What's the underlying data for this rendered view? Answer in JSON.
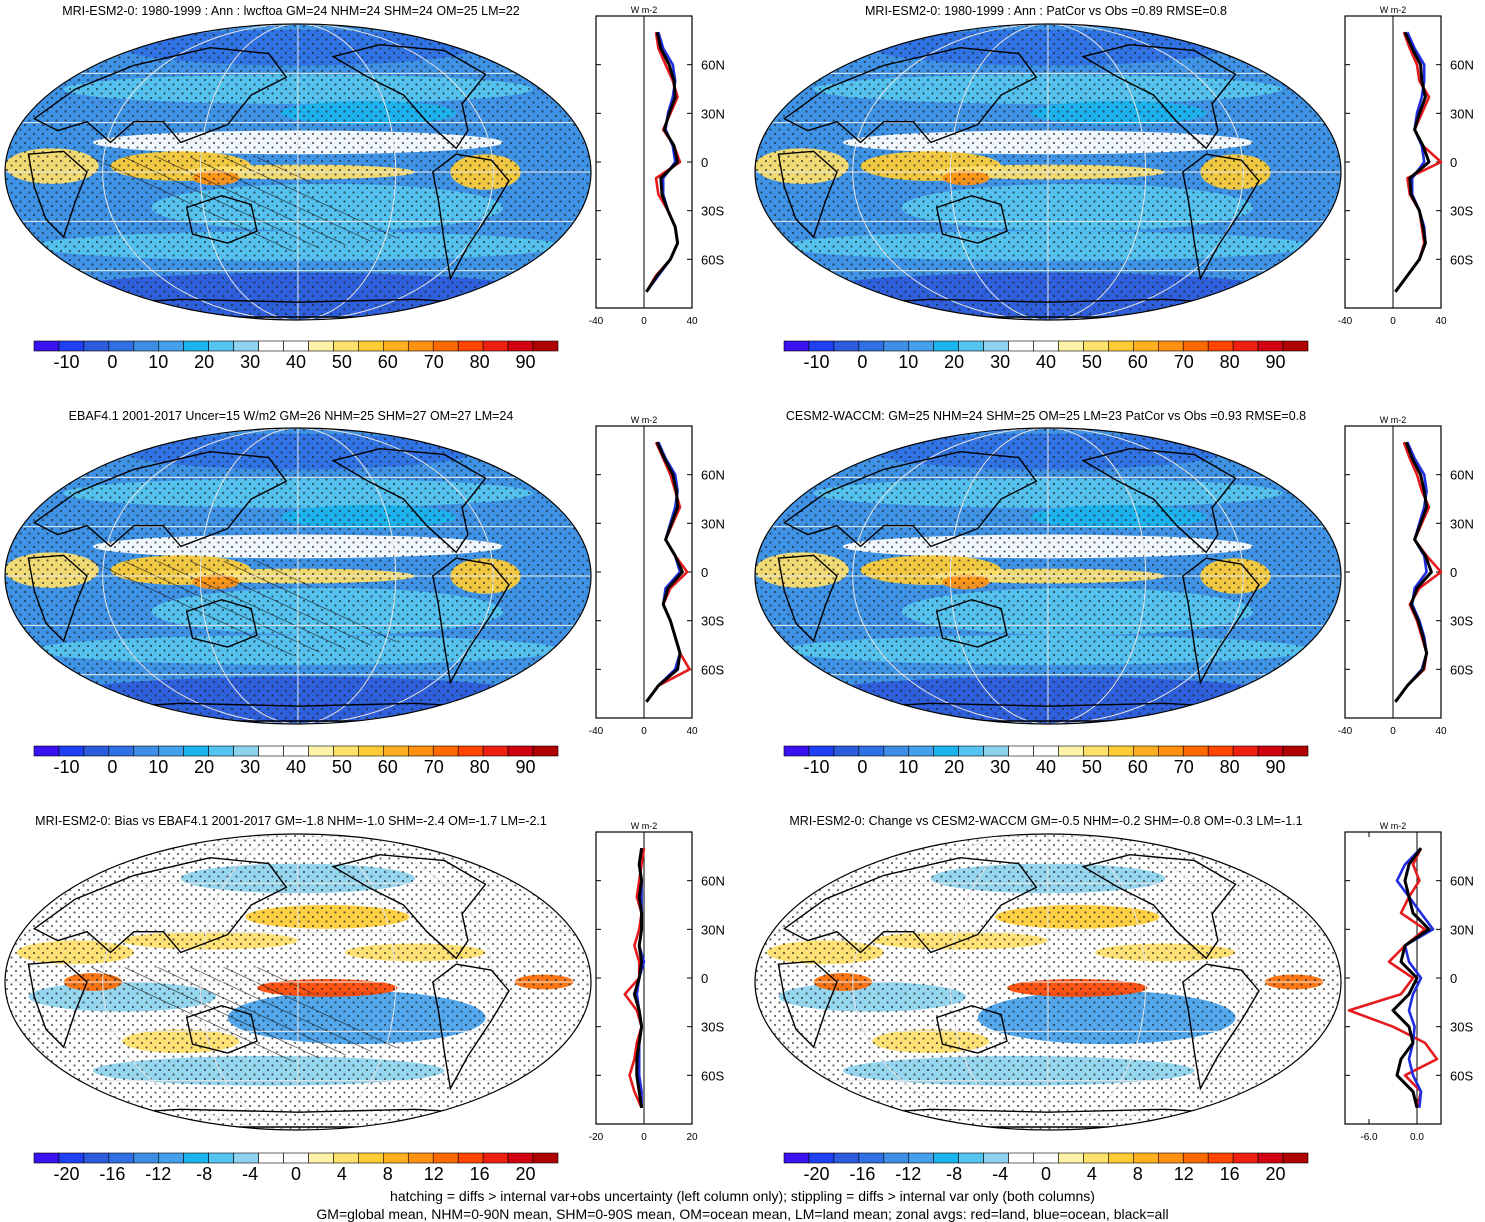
{
  "footer": {
    "line1": "hatching = diffs > internal var+obs uncertainty (left column only); stippling = diffs > internal var only (both columns)",
    "line2": "GM=global mean, NHM=0-90N mean, SHM=0-90S mean, OM=ocean mean, LM=land mean; zonal avgs: red=land, blue=ocean, black=all"
  },
  "colors": {
    "land": "#e41a1c",
    "ocean": "#1f2de0",
    "all": "#000000",
    "mean_scale": [
      "#3a12f0",
      "#1f3ff2",
      "#2c5bdc",
      "#2f70e4",
      "#3e8ee6",
      "#44a0ea",
      "#1ab4ee",
      "#56c4f0",
      "#8dd2ee",
      "#ffffff",
      "#ffffff",
      "#fff3a8",
      "#ffe06a",
      "#ffcc33",
      "#ffb020",
      "#ff9010",
      "#ff6a00",
      "#ff4500",
      "#f02010",
      "#d00010",
      "#b00000"
    ],
    "diff_scale": [
      "#3a12f0",
      "#1f3ff2",
      "#2c5bdc",
      "#2f70e4",
      "#3e8ee6",
      "#44a0ea",
      "#1ab4ee",
      "#56c4f0",
      "#8dd2ee",
      "#ffffff",
      "#ffffff",
      "#fff3a8",
      "#ffe06a",
      "#ffcc33",
      "#ffb020",
      "#ff9010",
      "#ff6a00",
      "#ff4500",
      "#f02010",
      "#d00010",
      "#b00000"
    ]
  },
  "chart_data": [
    {
      "type": "heatmap",
      "title": "MRI-ESM2-0: 1980-1999 : Ann : lwcftoa GM=24 NHM=24 SHM=24 OM=25 LM=22",
      "colorbar_labels": [
        "-10",
        "0",
        "10",
        "20",
        "30",
        "40",
        "50",
        "60",
        "70",
        "80",
        "90"
      ],
      "zonal": {
        "unit": "W m-2",
        "x_ticks": [
          "-40",
          "0",
          "40"
        ],
        "xlim": [
          -40,
          40
        ],
        "y_ticks": [
          "60N",
          "30N",
          "0",
          "30S",
          "60S"
        ],
        "lat": [
          80,
          70,
          60,
          50,
          40,
          30,
          20,
          10,
          0,
          -10,
          -20,
          -30,
          -40,
          -50,
          -60,
          -70,
          -80
        ],
        "series": [
          {
            "name": "land",
            "values": [
              10,
              12,
              18,
              24,
              28,
              22,
              16,
              25,
              30,
              10,
              12,
              20,
              26,
              28,
              22,
              10,
              2
            ]
          },
          {
            "name": "ocean",
            "values": [
              12,
              16,
              24,
              26,
              24,
              20,
              18,
              24,
              26,
              16,
              16,
              20,
              26,
              28,
              22,
              12,
              2
            ]
          },
          {
            "name": "all",
            "values": [
              11,
              14,
              21,
              25,
              26,
              21,
              17,
              25,
              28,
              14,
              15,
              20,
              26,
              28,
              22,
              11,
              2
            ]
          }
        ]
      }
    },
    {
      "type": "heatmap",
      "title": "MRI-ESM2-0: 1980-1999 : Ann : PatCor vs Obs =0.89 RMSE=0.8",
      "colorbar_labels": [
        "-10",
        "0",
        "10",
        "20",
        "30",
        "40",
        "50",
        "60",
        "70",
        "80",
        "90"
      ],
      "zonal": {
        "unit": "W m-2",
        "x_ticks": [
          "-40",
          "0",
          "40"
        ],
        "xlim": [
          -40,
          40
        ],
        "y_ticks": [
          "60N",
          "30N",
          "0",
          "30S",
          "60S"
        ],
        "lat": [
          80,
          70,
          60,
          50,
          40,
          30,
          20,
          10,
          0,
          -10,
          -20,
          -30,
          -40,
          -50,
          -60,
          -70,
          -80
        ],
        "series": [
          {
            "name": "land",
            "values": [
              9,
              14,
              20,
              22,
              30,
              24,
              18,
              25,
              40,
              12,
              14,
              22,
              24,
              26,
              22,
              12,
              2
            ]
          },
          {
            "name": "ocean",
            "values": [
              12,
              18,
              26,
              26,
              24,
              20,
              18,
              24,
              26,
              16,
              16,
              22,
              26,
              27,
              22,
              12,
              2
            ]
          },
          {
            "name": "all",
            "values": [
              10,
              16,
              23,
              24,
              27,
              22,
              18,
              25,
              30,
              14,
              15,
              22,
              25,
              27,
              22,
              12,
              2
            ]
          }
        ]
      }
    },
    {
      "type": "heatmap",
      "title": "EBAF4.1 2001-2017 Uncer=15 W/m2 GM=26 NHM=25 SHM=27 OM=27 LM=24",
      "colorbar_labels": [
        "-10",
        "0",
        "10",
        "20",
        "30",
        "40",
        "50",
        "60",
        "70",
        "80",
        "90"
      ],
      "zonal": {
        "unit": "W m-2",
        "x_ticks": [
          "-40",
          "0",
          "40"
        ],
        "xlim": [
          -40,
          40
        ],
        "y_ticks": [
          "60N",
          "30N",
          "0",
          "30S",
          "60S"
        ],
        "lat": [
          80,
          70,
          60,
          50,
          40,
          30,
          20,
          10,
          0,
          -10,
          -20,
          -30,
          -40,
          -50,
          -60,
          -70,
          -80
        ],
        "series": [
          {
            "name": "land",
            "values": [
              10,
              16,
              22,
              26,
              30,
              24,
              18,
              26,
              36,
              22,
              16,
              22,
              26,
              30,
              38,
              12,
              2
            ]
          },
          {
            "name": "ocean",
            "values": [
              12,
              18,
              26,
              28,
              26,
              22,
              18,
              26,
              30,
              18,
              16,
              22,
              26,
              30,
              26,
              12,
              2
            ]
          },
          {
            "name": "all",
            "values": [
              11,
              17,
              24,
              27,
              28,
              23,
              18,
              26,
              32,
              20,
              16,
              22,
              26,
              30,
              28,
              12,
              2
            ]
          }
        ]
      }
    },
    {
      "type": "heatmap",
      "title": "CESM2-WACCM: GM=25 NHM=24 SHM=25 OM=25 LM=23 PatCor vs Obs =0.93 RMSE=0.8",
      "colorbar_labels": [
        "-10",
        "0",
        "10",
        "20",
        "30",
        "40",
        "50",
        "60",
        "70",
        "80",
        "90"
      ],
      "zonal": {
        "unit": "W m-2",
        "x_ticks": [
          "-40",
          "0",
          "40"
        ],
        "xlim": [
          -40,
          40
        ],
        "y_ticks": [
          "60N",
          "30N",
          "0",
          "30S",
          "60S"
        ],
        "lat": [
          80,
          70,
          60,
          50,
          40,
          30,
          20,
          10,
          0,
          -10,
          -20,
          -30,
          -40,
          -50,
          -60,
          -70,
          -80
        ],
        "series": [
          {
            "name": "land",
            "values": [
              9,
              14,
              20,
              24,
              30,
              24,
              18,
              28,
              40,
              22,
              14,
              20,
              24,
              28,
              26,
              12,
              2
            ]
          },
          {
            "name": "ocean",
            "values": [
              12,
              18,
              26,
              28,
              26,
              22,
              18,
              26,
              28,
              18,
              16,
              22,
              26,
              28,
              24,
              12,
              2
            ]
          },
          {
            "name": "all",
            "values": [
              11,
              16,
              23,
              26,
              28,
              23,
              18,
              27,
              32,
              20,
              15,
              21,
              25,
              28,
              25,
              12,
              2
            ]
          }
        ]
      }
    },
    {
      "type": "heatmap",
      "title": "MRI-ESM2-0: Bias vs EBAF4.1 2001-2017 GM=-1.8 NHM=-1.0 SHM=-2.4 OM=-1.7 LM=-2.1",
      "colorbar_labels": [
        "-20",
        "-16",
        "-12",
        "-8",
        "-4",
        "0",
        "4",
        "8",
        "12",
        "16",
        "20"
      ],
      "zonal": {
        "unit": "W m-2",
        "x_ticks": [
          "-20",
          "0",
          "20"
        ],
        "xlim": [
          -20,
          20
        ],
        "y_ticks": [
          "60N",
          "30N",
          "0",
          "30S",
          "60S"
        ],
        "lat": [
          80,
          70,
          60,
          50,
          40,
          30,
          20,
          10,
          0,
          -10,
          -20,
          -30,
          -40,
          -50,
          -60,
          -70,
          -80
        ],
        "series": [
          {
            "name": "land",
            "values": [
              0,
              -1,
              -2,
              -3,
              -1,
              -2,
              -4,
              -2,
              -2,
              -8,
              -3,
              -1,
              -3,
              -4,
              -6,
              -4,
              -1
            ]
          },
          {
            "name": "ocean",
            "values": [
              -1,
              -2,
              -1,
              -1,
              -1,
              -1,
              -2,
              0,
              -2,
              -3,
              -2,
              -1,
              -2,
              -2,
              -2,
              -1,
              -1
            ]
          },
          {
            "name": "all",
            "values": [
              -1,
              -2,
              -1,
              -2,
              -1,
              -1,
              -2,
              -1,
              -2,
              -4,
              -2,
              -1,
              -2,
              -3,
              -3,
              -2,
              -1
            ]
          }
        ]
      }
    },
    {
      "type": "heatmap",
      "title": "MRI-ESM2-0: Change vs CESM2-WACCM GM=-0.5 NHM=-0.2 SHM=-0.8 OM=-0.3 LM=-1.1",
      "colorbar_labels": [
        "-20",
        "-16",
        "-12",
        "-8",
        "-4",
        "0",
        "4",
        "8",
        "12",
        "16",
        "20"
      ],
      "zonal": {
        "unit": "W m-2",
        "x_ticks": [
          "-6.0",
          "0.0"
        ],
        "xlim": [
          -9,
          3
        ],
        "y_ticks": [
          "60N",
          "30N",
          "0",
          "30S",
          "60S"
        ],
        "lat": [
          80,
          70,
          60,
          50,
          40,
          30,
          20,
          10,
          0,
          -10,
          -20,
          -30,
          -40,
          -50,
          -60,
          -70,
          -80
        ],
        "series": [
          {
            "name": "land",
            "values": [
              0.5,
              -0.5,
              0.3,
              -1.0,
              -2.0,
              1.0,
              -1.5,
              -3.5,
              -0.5,
              -2.0,
              -8.5,
              -3.0,
              1.0,
              2.5,
              -1.5,
              0.5,
              0.0
            ]
          },
          {
            "name": "ocean",
            "values": [
              0.5,
              -1.5,
              -2.5,
              -1.0,
              0.5,
              2.0,
              -1.5,
              -1.0,
              0.5,
              -0.5,
              -1.0,
              -0.3,
              -0.5,
              -1.0,
              -0.5,
              0.5,
              0.3
            ]
          },
          {
            "name": "all",
            "values": [
              0.5,
              -1.0,
              -1.5,
              -1.0,
              -0.5,
              1.5,
              -1.5,
              -2.0,
              0.0,
              -1.0,
              -3.0,
              -1.0,
              -0.5,
              -2.0,
              -2.5,
              -0.5,
              0.0
            ]
          }
        ]
      }
    }
  ]
}
